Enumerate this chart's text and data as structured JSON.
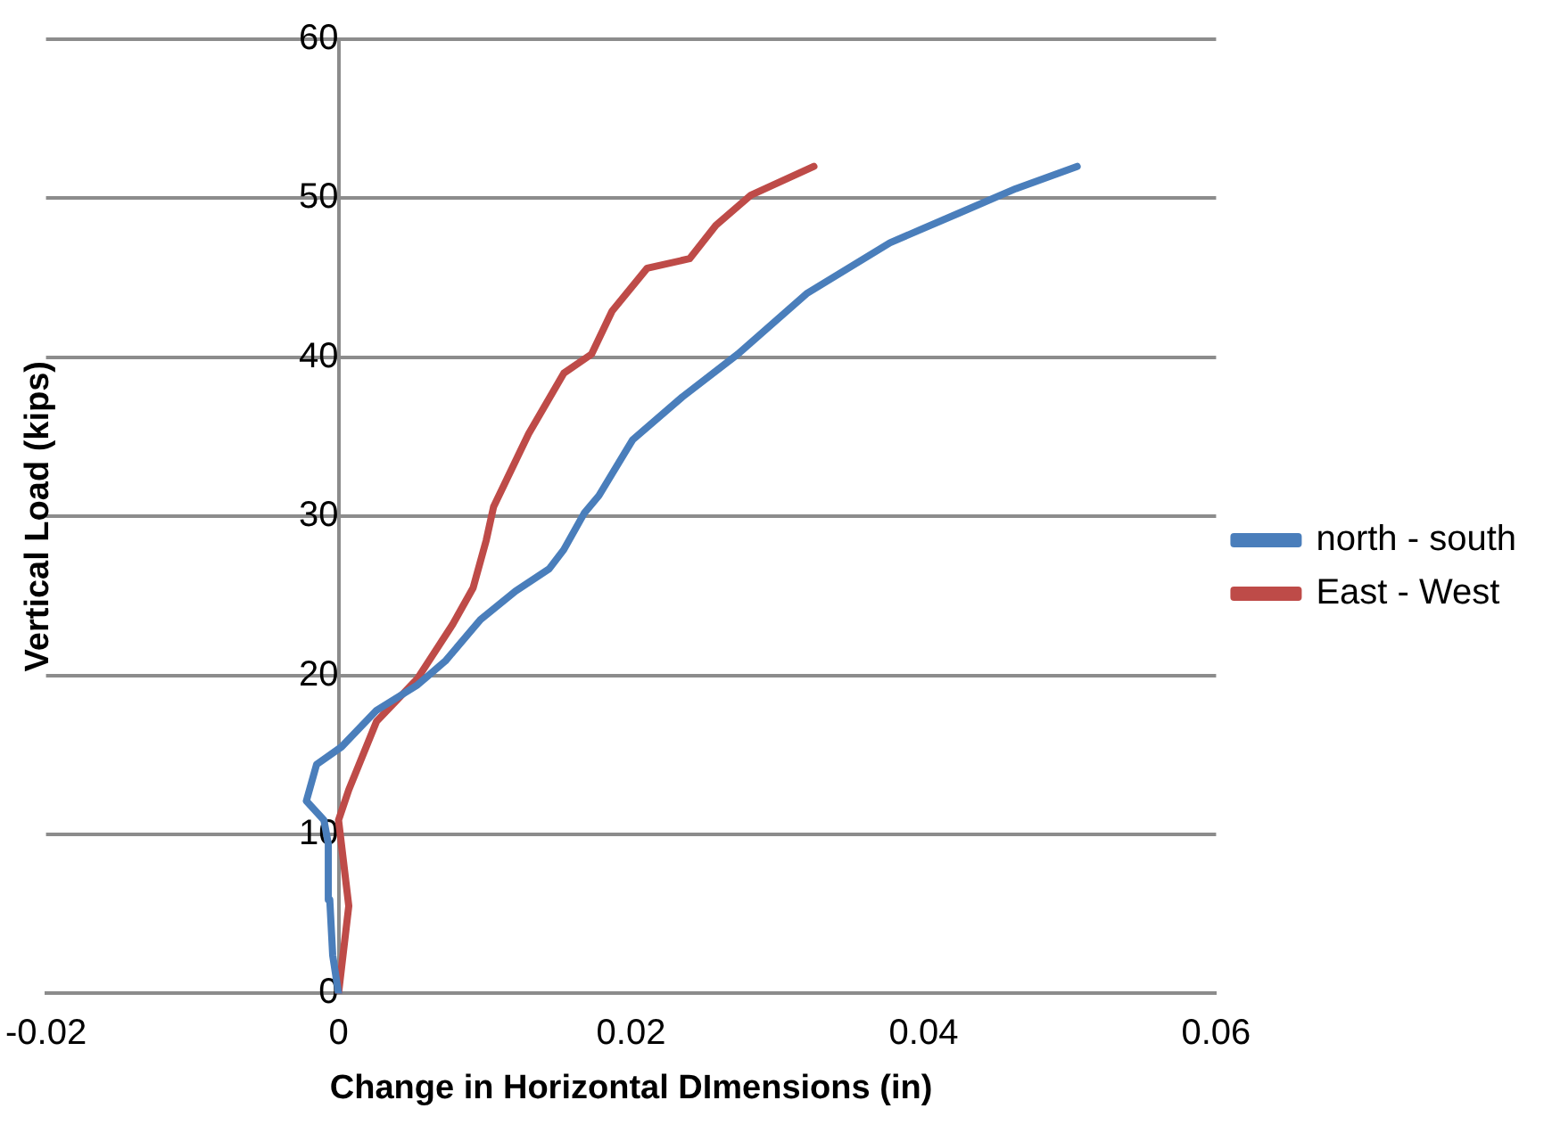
{
  "chart_data": {
    "type": "line",
    "xlabel": "Change in Horizontal DImensions (in)",
    "ylabel": "Vertical Load (kips)",
    "xlim": [
      -0.02,
      0.06
    ],
    "xticks": [
      -0.02,
      0,
      0.02,
      0.04,
      0.06
    ],
    "ylim": [
      0,
      60
    ],
    "yticks": [
      0,
      10,
      20,
      30,
      40,
      50,
      60
    ],
    "grid": "y",
    "legend": "right",
    "marker": "none",
    "line_style": "solid",
    "series": [
      {
        "name": "north - south",
        "color": "#4a7ebb",
        "x": [
          0,
          -0.0004,
          -0.0006,
          -0.0007,
          -0.001,
          -0.0022,
          -0.0015,
          0.0002,
          0.0026,
          0.0054,
          0.0073,
          0.0097,
          0.0121,
          0.0144,
          0.0154,
          0.0168,
          0.0178,
          0.0201,
          0.0235,
          0.0273,
          0.032,
          0.0377,
          0.0425,
          0.0463,
          0.0505
        ],
        "values": [
          0,
          2.4,
          5.9,
          9.4,
          10.9,
          12.1,
          14.4,
          15.5,
          17.8,
          19.4,
          20.9,
          23.5,
          25.3,
          26.7,
          27.9,
          30.2,
          31.3,
          34.8,
          37.5,
          40.2,
          44,
          47.2,
          49.1,
          50.6,
          52
        ]
      },
      {
        "name": "East - West",
        "color": "#be4b48",
        "x": [
          0,
          0.0007,
          0,
          0.0007,
          0.0026,
          0.0054,
          0.0078,
          0.0092,
          0.0101,
          0.0106,
          0.013,
          0.0154,
          0.0173,
          0.0187,
          0.0211,
          0.024,
          0.0258,
          0.0282,
          0.0325
        ],
        "values": [
          0,
          5.5,
          10.9,
          12.8,
          17.1,
          19.8,
          23.2,
          25.5,
          28.5,
          30.6,
          35.2,
          39,
          40.2,
          42.9,
          45.6,
          46.2,
          48.3,
          50.2,
          52
        ]
      }
    ]
  }
}
